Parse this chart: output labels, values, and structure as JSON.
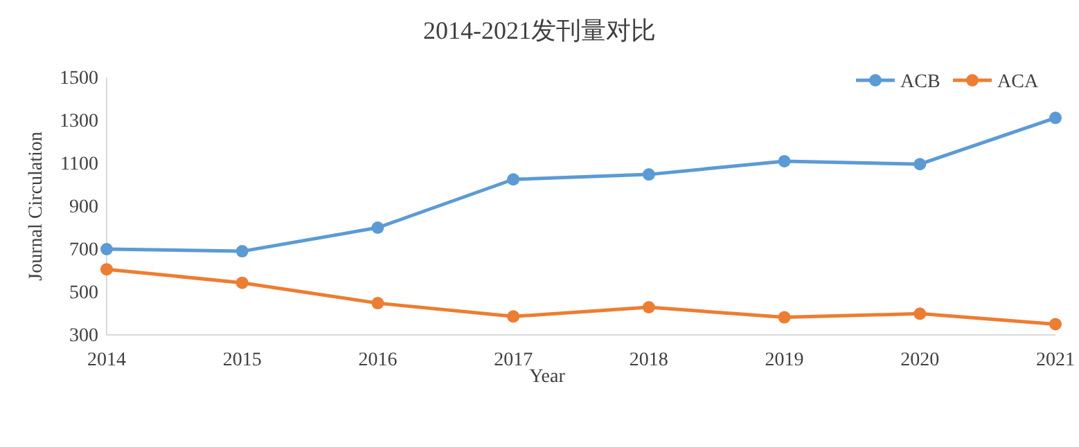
{
  "chart_data": {
    "type": "line",
    "title": "2014-2021发刊量对比",
    "xlabel": "Year",
    "ylabel": "Journal Circulation",
    "x": [
      2014,
      2015,
      2016,
      2017,
      2018,
      2019,
      2020,
      2021
    ],
    "series": [
      {
        "name": "ACB",
        "color": "#5b9bd5",
        "values": [
          700,
          690,
          800,
          1025,
          1048,
          1110,
          1096,
          1312
        ]
      },
      {
        "name": "ACA",
        "color": "#ed7d31",
        "values": [
          606,
          543,
          448,
          386,
          429,
          382,
          399,
          350
        ]
      }
    ],
    "xlim": [
      2014,
      2021
    ],
    "xticks": [
      2014,
      2015,
      2016,
      2017,
      2018,
      2019,
      2020,
      2021
    ],
    "ylim": [
      300,
      1500
    ],
    "yticks": [
      300,
      500,
      700,
      900,
      1100,
      1300,
      1500
    ],
    "grid": false,
    "legend": "top right",
    "marker": "circle",
    "line_style": "solid"
  }
}
